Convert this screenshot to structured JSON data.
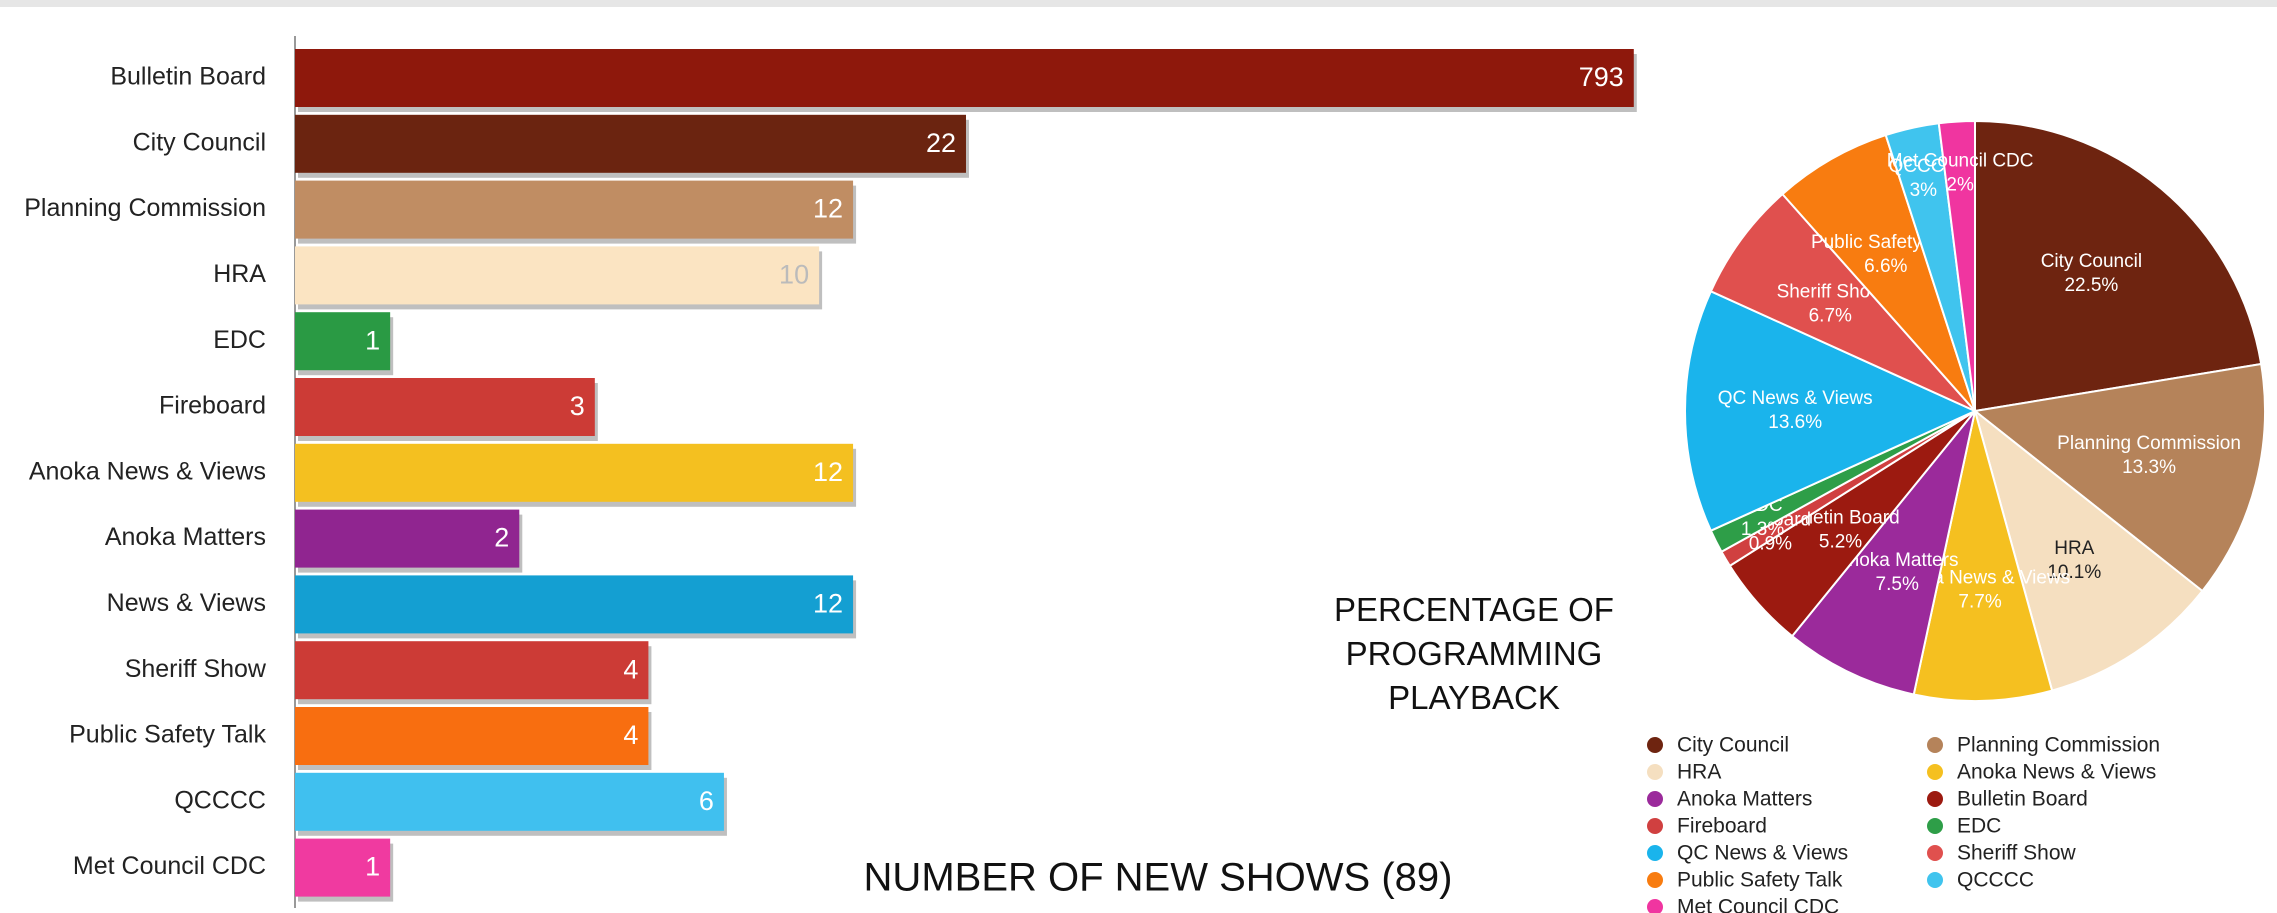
{
  "chart_data": [
    {
      "type": "bar",
      "orientation": "horizontal",
      "title": "NUMBER OF NEW SHOWS (89)",
      "categories": [
        "Bulletin Board",
        "City Council",
        "Planning Commission",
        "HRA",
        "EDC",
        "Fireboard",
        "Anoka News & Views",
        "Anoka Matters",
        "News & Views",
        "Sheriff Show",
        "Public Safety Talk",
        "QCCCC",
        "Met Council CDC"
      ],
      "values": [
        793,
        22,
        12,
        10,
        1,
        3,
        12,
        2,
        12,
        4,
        4,
        6,
        1
      ],
      "colors": [
        "#8e180c",
        "#6b2410",
        "#c08d63",
        "#fbe4c2",
        "#2a9a44",
        "#cc3b36",
        "#f4c020",
        "#902590",
        "#149fd2",
        "#cc3b36",
        "#f86e10",
        "#40c0ef",
        "#f03aa0"
      ],
      "xscale": "log",
      "xlim": [
        0.6,
        1000
      ]
    },
    {
      "type": "pie",
      "title": "PERCENTAGE OF PROGRAMMING PLAYBACK",
      "categories": [
        "City Council",
        "Planning Commission",
        "HRA",
        "Anoka News & Views",
        "Anoka Matters",
        "Bulletin Board",
        "Fireboard",
        "EDC",
        "QC News & Views",
        "Sheriff Show",
        "Public Safety Talk",
        "QCCCC",
        "Met Council CDC"
      ],
      "values": [
        22.5,
        13.3,
        10.1,
        7.7,
        7.5,
        5.2,
        0.9,
        1.3,
        13.6,
        6.7,
        6.6,
        3,
        2
      ],
      "value_labels": [
        "22.5%",
        "13.3%",
        "10.1%",
        "7.7%",
        "7.5%",
        "5.2%",
        "0.9%",
        "1.3%",
        "13.6%",
        "6.7%",
        "6.6%",
        "3%",
        "2%"
      ],
      "colors": [
        "#6e2410",
        "#b5835a",
        "#f5dfc0",
        "#f5c020",
        "#9b2a9b",
        "#9c1a10",
        "#d04040",
        "#2e9e48",
        "#1ab4ec",
        "#e0504e",
        "#f87c10",
        "#40c4ee",
        "#f035a0"
      ],
      "legend": "bottom"
    }
  ]
}
